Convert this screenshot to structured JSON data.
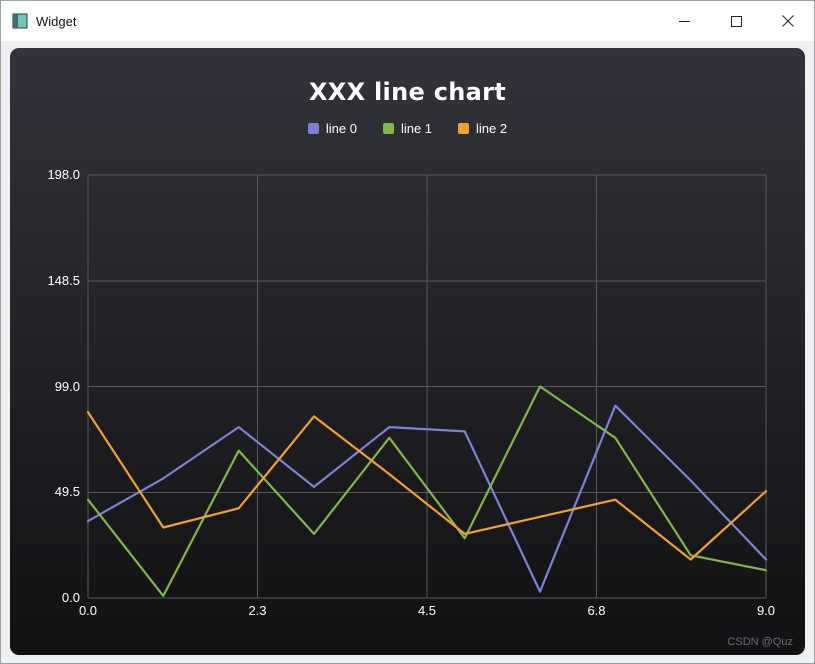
{
  "window": {
    "title": "Widget",
    "controls": [
      {
        "name": "minimize"
      },
      {
        "name": "maximize"
      },
      {
        "name": "close"
      }
    ]
  },
  "chart_data": {
    "type": "line",
    "title": "XXX line chart",
    "x": [
      0,
      1,
      2,
      3,
      4,
      5,
      6,
      7,
      8,
      9
    ],
    "series": [
      {
        "name": "line 0",
        "color": "#7a82d4",
        "values": [
          36,
          56,
          80,
          52,
          80,
          78,
          3,
          90,
          55,
          18
        ]
      },
      {
        "name": "line 1",
        "color": "#82b648",
        "values": [
          46,
          1,
          69,
          30,
          75,
          28,
          99,
          75,
          20,
          13
        ]
      },
      {
        "name": "line 2",
        "color": "#efa02f",
        "values": [
          87,
          33,
          42,
          85,
          58,
          30,
          38,
          46,
          18,
          50
        ]
      }
    ],
    "xlim": [
      0,
      9
    ],
    "ylim": [
      0,
      198
    ],
    "x_ticks": [
      "0.0",
      "2.3",
      "4.5",
      "6.8",
      "9.0"
    ],
    "y_ticks": [
      "0.0",
      "49.5",
      "99.0",
      "148.5",
      "198.0"
    ],
    "xlabel": "",
    "ylabel": "",
    "grid": true,
    "legend_position": "top",
    "background": "dark-gradient"
  },
  "watermark": "CSDN @Quz"
}
